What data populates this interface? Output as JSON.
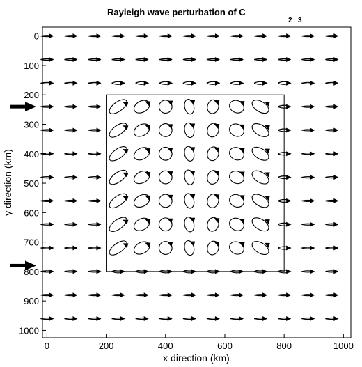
{
  "chart_data": {
    "type": "vector-field",
    "title_main": "Rayleigh wave    perturbation of C",
    "title_subscripts": [
      "2",
      "3"
    ],
    "xlabel": "x  direction (km)",
    "ylabel": "y  direction (km)",
    "xlim": [
      -15,
      1025
    ],
    "ylim": [
      1025,
      -30
    ],
    "xticks": [
      0,
      200,
      400,
      600,
      800,
      1000
    ],
    "yticks": [
      0,
      100,
      200,
      300,
      400,
      500,
      600,
      700,
      800,
      900,
      1000
    ],
    "grid_x": [
      0,
      80,
      160,
      240,
      320,
      400,
      480,
      560,
      640,
      720,
      800,
      880,
      960
    ],
    "grid_y": [
      0,
      80,
      160,
      240,
      320,
      400,
      480,
      560,
      640,
      720,
      800,
      880,
      960
    ],
    "perturbation_region": {
      "x": [
        200,
        800
      ],
      "y": [
        200,
        800
      ]
    },
    "source_arrows_y": [
      240,
      780
    ],
    "marker_color": "#000000"
  }
}
